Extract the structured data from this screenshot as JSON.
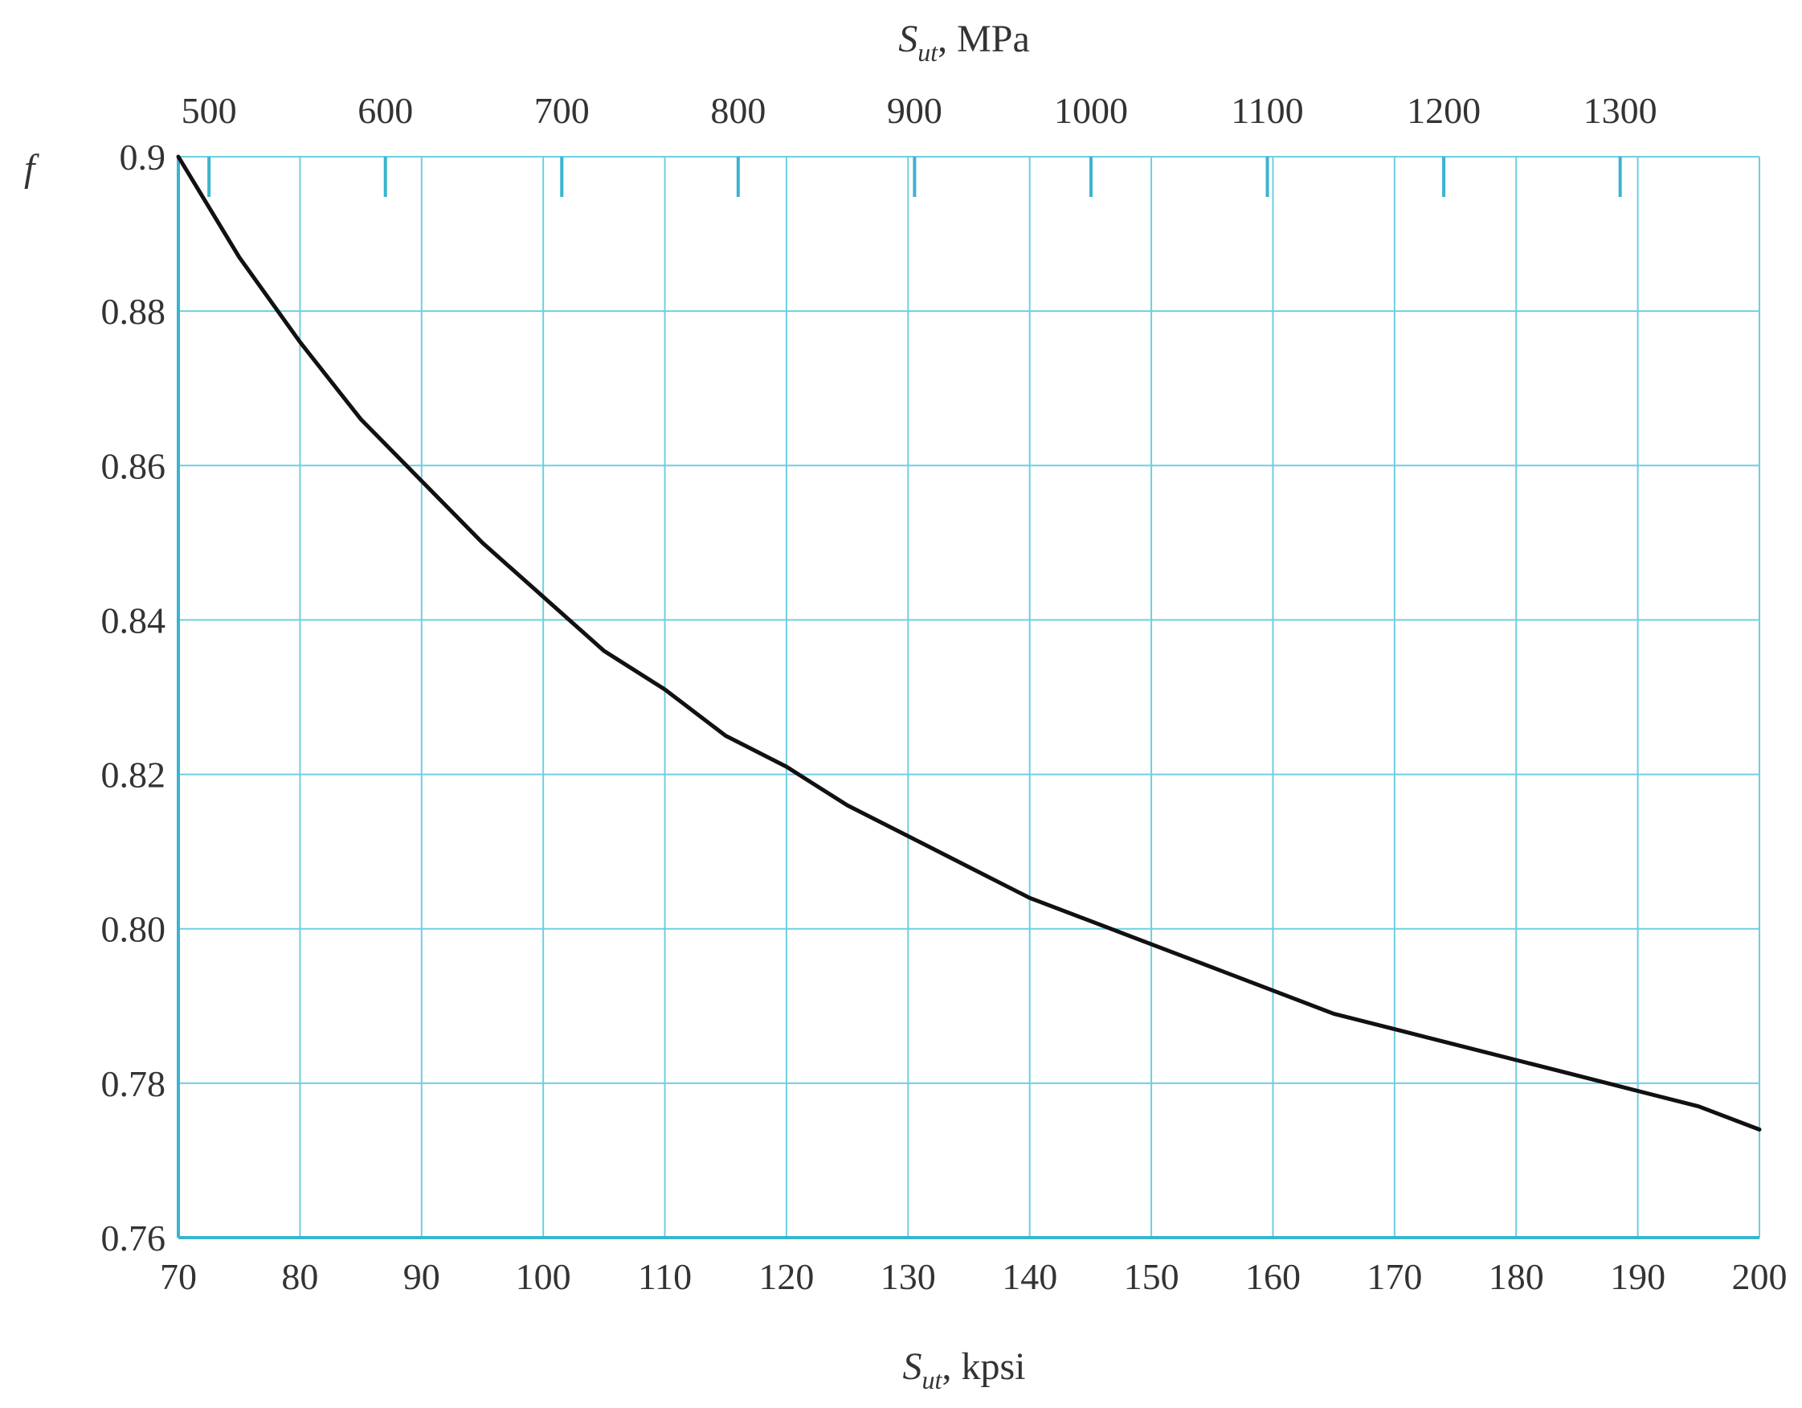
{
  "chart_data": {
    "type": "line",
    "ylabel": "f",
    "xlabel": {
      "symbol": "S",
      "subscript": "ut",
      "unit": ", kpsi"
    },
    "x2label": {
      "symbol": "S",
      "subscript": "ut",
      "unit": ", MPa"
    },
    "xlim": [
      70,
      200
    ],
    "ylim": [
      0.76,
      0.9
    ],
    "x_ticks": [
      70,
      80,
      90,
      100,
      110,
      120,
      130,
      140,
      150,
      160,
      170,
      180,
      190,
      200
    ],
    "x_tick_labels": [
      "70",
      "80",
      "90",
      "100",
      "110",
      "120",
      "130",
      "140",
      "150",
      "160",
      "170",
      "180",
      "190",
      "200"
    ],
    "y_ticks": [
      0.76,
      0.78,
      0.8,
      0.82,
      0.84,
      0.86,
      0.88,
      0.9
    ],
    "y_tick_labels": [
      "0.76",
      "0.78",
      "0.80",
      "0.82",
      "0.84",
      "0.86",
      "0.88",
      "0.9"
    ],
    "x2_ticks_mpa": [
      500,
      600,
      700,
      800,
      900,
      1000,
      1100,
      1200,
      1300
    ],
    "x2_tick_labels": [
      "500",
      "600",
      "700",
      "800",
      "900",
      "1000",
      "1100",
      "1200",
      "1300"
    ],
    "grid": true,
    "series": [
      {
        "color": "#111111",
        "x": [
          70,
          75,
          80,
          85,
          90,
          95,
          100,
          105,
          110,
          115,
          120,
          125,
          130,
          135,
          140,
          145,
          150,
          155,
          160,
          165,
          170,
          175,
          180,
          185,
          190,
          195,
          200
        ],
        "y": [
          0.9,
          0.887,
          0.876,
          0.866,
          0.858,
          0.85,
          0.843,
          0.836,
          0.831,
          0.825,
          0.821,
          0.816,
          0.812,
          0.808,
          0.804,
          0.801,
          0.798,
          0.795,
          0.792,
          0.789,
          0.787,
          0.785,
          0.783,
          0.781,
          0.779,
          0.777,
          0.774
        ]
      }
    ],
    "colors": {
      "grid": "#6ecfe0",
      "axis": "#3ab4cf",
      "curve": "#111111",
      "text": "#333333"
    }
  }
}
